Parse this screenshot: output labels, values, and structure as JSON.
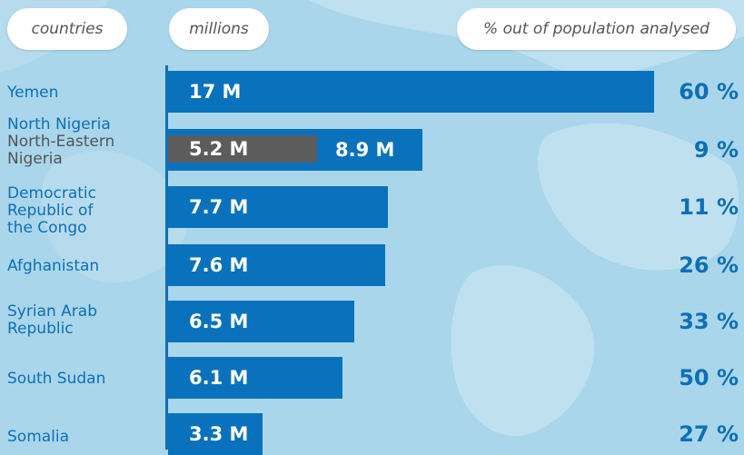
{
  "headers": {
    "countries": "countries",
    "millions": "millions",
    "percent": "% out of population analysed"
  },
  "colors": {
    "background": "#a9d6ea",
    "bar": "#0a72bd",
    "sub_bar": "#5c5c5c",
    "label": "#0e6fb7",
    "secondary_label": "#555555"
  },
  "chart_data": {
    "type": "bar",
    "orientation": "horizontal",
    "categories": [
      "Yemen",
      "North Nigeria",
      "Democratic Republic of the Congo",
      "Afghanistan",
      "Syrian Arab Republic",
      "South Sudan",
      "Somalia"
    ],
    "values": [
      17,
      8.9,
      7.7,
      7.6,
      6.5,
      6.1,
      3.3
    ],
    "value_labels": [
      "17 M",
      "8.9 M",
      "7.7 M",
      "7.6 M",
      "6.5 M",
      "6.1 M",
      "3.3 M"
    ],
    "percent_labels": [
      "60 %",
      "9 %",
      "11 %",
      "26 %",
      "33 %",
      "50 %",
      "27 %"
    ],
    "sub_values": [
      null,
      5.2,
      null,
      null,
      null,
      null,
      null
    ],
    "sub_value_labels": [
      null,
      "5.2 M",
      null,
      null,
      null,
      null,
      null
    ],
    "sub_categories": [
      null,
      "North-Eastern Nigeria",
      null,
      null,
      null,
      null,
      null
    ],
    "xlim": [
      0,
      17
    ]
  }
}
